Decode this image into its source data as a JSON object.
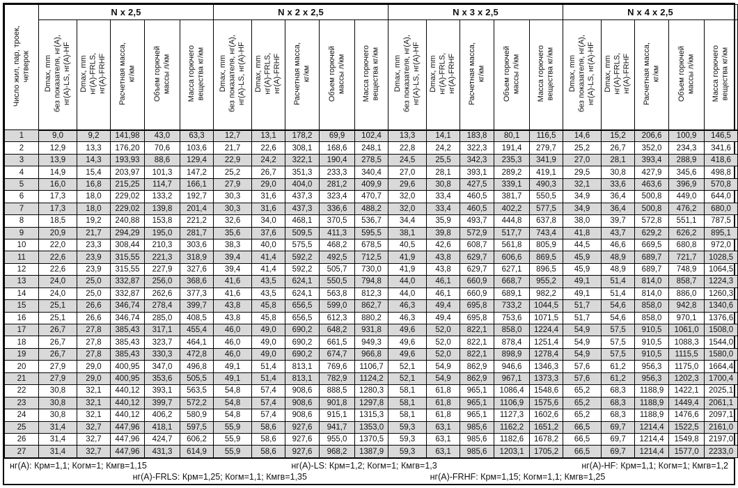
{
  "colors": {
    "border": "#000000",
    "stripe": "#d9d9d9",
    "text": "#111111",
    "background": "#ffffff"
  },
  "table": {
    "corner_header": "Число жил, пар, троек,\nчетверок",
    "groups": [
      {
        "label": "N x 2,5"
      },
      {
        "label": "N x 2 x 2,5"
      },
      {
        "label": "N x 3 x 2,5"
      },
      {
        "label": "N x 4 x 2,5"
      }
    ],
    "column_headers": [
      "Dmax, mm\nбез показателя, нг(A),\nнг(A)-LS, нг(A)-HF",
      "Dmax, mm\nнг(A)-FRLS,\nнг(A)-FRHF",
      "Расчетная масса,\nкг/км",
      "Объем горючей\nмассы л/км",
      "Масса горючего\nвещества кг/км"
    ],
    "rows": [
      {
        "n": "1",
        "values": [
          "9,0",
          "9,2",
          "141,98",
          "43,0",
          "63,3",
          "12,7",
          "13,1",
          "178,2",
          "69,9",
          "102,4",
          "13,3",
          "14,1",
          "183,8",
          "80,1",
          "116,5",
          "14,6",
          "15,2",
          "206,6",
          "100,9",
          "146,5"
        ]
      },
      {
        "n": "2",
        "values": [
          "12,9",
          "13,3",
          "176,20",
          "70,6",
          "103,6",
          "21,7",
          "22,6",
          "308,1",
          "168,6",
          "248,1",
          "22,8",
          "24,2",
          "322,3",
          "191,4",
          "279,7",
          "25,2",
          "26,7",
          "352,0",
          "234,3",
          "341,6"
        ]
      },
      {
        "n": "3",
        "values": [
          "13,9",
          "14,3",
          "193,93",
          "88,6",
          "129,4",
          "22,9",
          "24,2",
          "322,1",
          "190,4",
          "278,5",
          "24,5",
          "25,5",
          "342,3",
          "235,3",
          "341,9",
          "27,0",
          "28,1",
          "393,4",
          "288,9",
          "418,6"
        ]
      },
      {
        "n": "4",
        "values": [
          "14,9",
          "15,4",
          "203,97",
          "101,3",
          "147,2",
          "25,2",
          "26,7",
          "351,3",
          "233,3",
          "340,4",
          "27,0",
          "28,1",
          "393,1",
          "289,2",
          "419,1",
          "29,5",
          "30,8",
          "427,9",
          "345,6",
          "498,8"
        ]
      },
      {
        "n": "5",
        "values": [
          "16,0",
          "16,8",
          "215,25",
          "114,7",
          "166,1",
          "27,9",
          "29,0",
          "404,0",
          "281,2",
          "409,9",
          "29,6",
          "30,8",
          "427,5",
          "339,1",
          "490,3",
          "32,1",
          "33,6",
          "463,6",
          "396,9",
          "570,8"
        ]
      },
      {
        "n": "6",
        "values": [
          "17,3",
          "18,0",
          "229,02",
          "133,2",
          "192,7",
          "30,3",
          "31,6",
          "437,3",
          "323,4",
          "470,7",
          "32,0",
          "33,4",
          "460,5",
          "381,7",
          "550,5",
          "34,9",
          "36,4",
          "500,8",
          "449,0",
          "644,0"
        ]
      },
      {
        "n": "7",
        "values": [
          "17,3",
          "18,0",
          "229,02",
          "139,8",
          "201,4",
          "30,3",
          "31,6",
          "437,3",
          "336,6",
          "488,2",
          "32,0",
          "33,4",
          "460,5",
          "402,2",
          "577,5",
          "34,9",
          "36,4",
          "500,8",
          "476,2",
          "680,0"
        ]
      },
      {
        "n": "8",
        "values": [
          "18,5",
          "19,2",
          "240,88",
          "153,8",
          "221,2",
          "32,6",
          "34,0",
          "468,1",
          "370,5",
          "536,7",
          "34,4",
          "35,9",
          "493,7",
          "444,8",
          "637,8",
          "38,0",
          "39,7",
          "572,8",
          "551,1",
          "787,5"
        ]
      },
      {
        "n": "9",
        "values": [
          "20,9",
          "21,7",
          "294,29",
          "195,0",
          "281,7",
          "35,6",
          "37,6",
          "509,5",
          "411,3",
          "595,5",
          "38,1",
          "39,8",
          "572,9",
          "517,7",
          "743,4",
          "41,8",
          "43,7",
          "629,2",
          "626,2",
          "895,1"
        ]
      },
      {
        "n": "10",
        "values": [
          "22,0",
          "23,3",
          "308,44",
          "210,3",
          "303,6",
          "38,3",
          "40,0",
          "575,5",
          "468,2",
          "678,5",
          "40,5",
          "42,6",
          "608,7",
          "561,8",
          "805,9",
          "44,5",
          "46,6",
          "669,5",
          "680,8",
          "972,0"
        ]
      },
      {
        "n": "11",
        "values": [
          "22,6",
          "23,9",
          "315,55",
          "221,3",
          "318,9",
          "39,4",
          "41,4",
          "592,2",
          "492,5",
          "712,5",
          "41,9",
          "43,8",
          "629,7",
          "606,6",
          "869,5",
          "45,9",
          "48,9",
          "689,7",
          "721,7",
          "1028,5"
        ]
      },
      {
        "n": "12",
        "values": [
          "22,6",
          "23,9",
          "315,55",
          "227,9",
          "327,6",
          "39,4",
          "41,4",
          "592,2",
          "505,7",
          "730,0",
          "41,9",
          "43,8",
          "629,7",
          "627,1",
          "896,5",
          "45,9",
          "48,9",
          "689,7",
          "748,9",
          "1064,5"
        ]
      },
      {
        "n": "13",
        "values": [
          "24,0",
          "25,0",
          "332,87",
          "256,0",
          "368,6",
          "41,6",
          "43,5",
          "624,1",
          "550,5",
          "794,8",
          "44,0",
          "46,1",
          "660,9",
          "668,7",
          "955,2",
          "49,1",
          "51,4",
          "814,0",
          "858,7",
          "1224,3"
        ]
      },
      {
        "n": "14",
        "values": [
          "24,0",
          "25,0",
          "332,87",
          "262,6",
          "377,3",
          "41,6",
          "43,5",
          "624,1",
          "563,8",
          "812,3",
          "44,0",
          "46,1",
          "660,9",
          "689,1",
          "982,2",
          "49,1",
          "51,4",
          "814,0",
          "886,0",
          "1260,3"
        ]
      },
      {
        "n": "15",
        "values": [
          "25,1",
          "26,6",
          "346,74",
          "278,4",
          "399,7",
          "43,8",
          "45,8",
          "656,5",
          "599,0",
          "862,7",
          "46,3",
          "49,4",
          "695,8",
          "733,2",
          "1044,5",
          "51,7",
          "54,6",
          "858,0",
          "942,8",
          "1340,6"
        ]
      },
      {
        "n": "16",
        "values": [
          "25,1",
          "26,6",
          "346,74",
          "285,0",
          "408,5",
          "43,8",
          "45,8",
          "656,5",
          "612,3",
          "880,2",
          "46,3",
          "49,4",
          "695,8",
          "753,6",
          "1071,5",
          "51,7",
          "54,6",
          "858,0",
          "970,1",
          "1376,6"
        ]
      },
      {
        "n": "17",
        "values": [
          "26,7",
          "27,8",
          "385,43",
          "317,1",
          "455,4",
          "46,0",
          "49,0",
          "690,2",
          "648,2",
          "931,8",
          "49,6",
          "52,0",
          "822,1",
          "858,0",
          "1224,4",
          "54,9",
          "57,5",
          "910,5",
          "1061,0",
          "1508,0"
        ]
      },
      {
        "n": "18",
        "values": [
          "26,7",
          "27,8",
          "385,43",
          "323,7",
          "464,1",
          "46,0",
          "49,0",
          "690,2",
          "661,5",
          "949,3",
          "49,6",
          "52,0",
          "822,1",
          "878,4",
          "1251,4",
          "54,9",
          "57,5",
          "910,5",
          "1088,3",
          "1544,0"
        ]
      },
      {
        "n": "19",
        "values": [
          "26,7",
          "27,8",
          "385,43",
          "330,3",
          "472,8",
          "46,0",
          "49,0",
          "690,2",
          "674,7",
          "966,8",
          "49,6",
          "52,0",
          "822,1",
          "898,9",
          "1278,4",
          "54,9",
          "57,5",
          "910,5",
          "1115,5",
          "1580,0"
        ]
      },
      {
        "n": "20",
        "values": [
          "27,9",
          "29,0",
          "400,95",
          "347,0",
          "496,8",
          "49,1",
          "51,4",
          "813,1",
          "769,6",
          "1106,7",
          "52,1",
          "54,9",
          "862,9",
          "946,6",
          "1346,3",
          "57,6",
          "61,2",
          "956,3",
          "1175,0",
          "1664,4"
        ]
      },
      {
        "n": "21",
        "values": [
          "27,9",
          "29,0",
          "400,95",
          "353,6",
          "505,5",
          "49,1",
          "51,4",
          "813,1",
          "782,9",
          "1124,2",
          "52,1",
          "54,9",
          "862,9",
          "967,1",
          "1373,3",
          "57,6",
          "61,2",
          "956,3",
          "1202,3",
          "1700,4"
        ]
      },
      {
        "n": "22",
        "values": [
          "30,8",
          "32,1",
          "440,12",
          "393,1",
          "563,5",
          "54,8",
          "57,4",
          "908,6",
          "888,5",
          "1280,3",
          "58,1",
          "61,8",
          "965,1",
          "1086,4",
          "1548,6",
          "65,2",
          "68,3",
          "1188,9",
          "1422,1",
          "2025,1"
        ]
      },
      {
        "n": "23",
        "values": [
          "30,8",
          "32,1",
          "440,12",
          "399,7",
          "572,2",
          "54,8",
          "57,4",
          "908,6",
          "901,8",
          "1297,8",
          "58,1",
          "61,8",
          "965,1",
          "1106,9",
          "1575,6",
          "65,2",
          "68,3",
          "1188,9",
          "1449,4",
          "2061,1"
        ]
      },
      {
        "n": "24",
        "values": [
          "30,8",
          "32,1",
          "440,12",
          "406,2",
          "580,9",
          "54,8",
          "57,4",
          "908,6",
          "915,1",
          "1315,3",
          "58,1",
          "61,8",
          "965,1",
          "1127,3",
          "1602,6",
          "65,2",
          "68,3",
          "1188,9",
          "1476,6",
          "2097,1"
        ]
      },
      {
        "n": "25",
        "values": [
          "31,4",
          "32,7",
          "447,96",
          "418,1",
          "597,5",
          "55,9",
          "58,6",
          "927,6",
          "941,7",
          "1353,0",
          "59,3",
          "63,1",
          "985,6",
          "1162,2",
          "1651,2",
          "66,5",
          "69,7",
          "1214,4",
          "1522,5",
          "2161,0"
        ]
      },
      {
        "n": "26",
        "values": [
          "31,4",
          "32,7",
          "447,96",
          "424,7",
          "606,2",
          "55,9",
          "58,6",
          "927,6",
          "955,0",
          "1370,5",
          "59,3",
          "63,1",
          "985,6",
          "1182,6",
          "1678,2",
          "66,5",
          "69,7",
          "1214,4",
          "1549,8",
          "2197,0"
        ]
      },
      {
        "n": "27",
        "values": [
          "31,4",
          "32,7",
          "447,96",
          "431,3",
          "614,9",
          "55,9",
          "58,6",
          "927,6",
          "968,2",
          "1387,9",
          "59,3",
          "63,1",
          "985,6",
          "1203,1",
          "1705,2",
          "66,5",
          "69,7",
          "1214,4",
          "1577,0",
          "2233,0"
        ]
      }
    ]
  },
  "footer": {
    "line1": [
      "нг(A): Крм=1,1;  Когм=1;  Кмгв=1,15",
      "нг(A)-LS: Крм=1,2;  Когм=1;  Кмгв=1,3",
      "нг(A)-HF: Крм=1,1;  Когм=1;  Кмгв=1,2"
    ],
    "line2": [
      "нг(A)-FRLS: Крм=1,25;  Когм=1,1;  Кмгв=1,35",
      "нг(A)-FRHF: Крм=1,15;  Когм=1,1;  Кмгв=1,25"
    ]
  }
}
